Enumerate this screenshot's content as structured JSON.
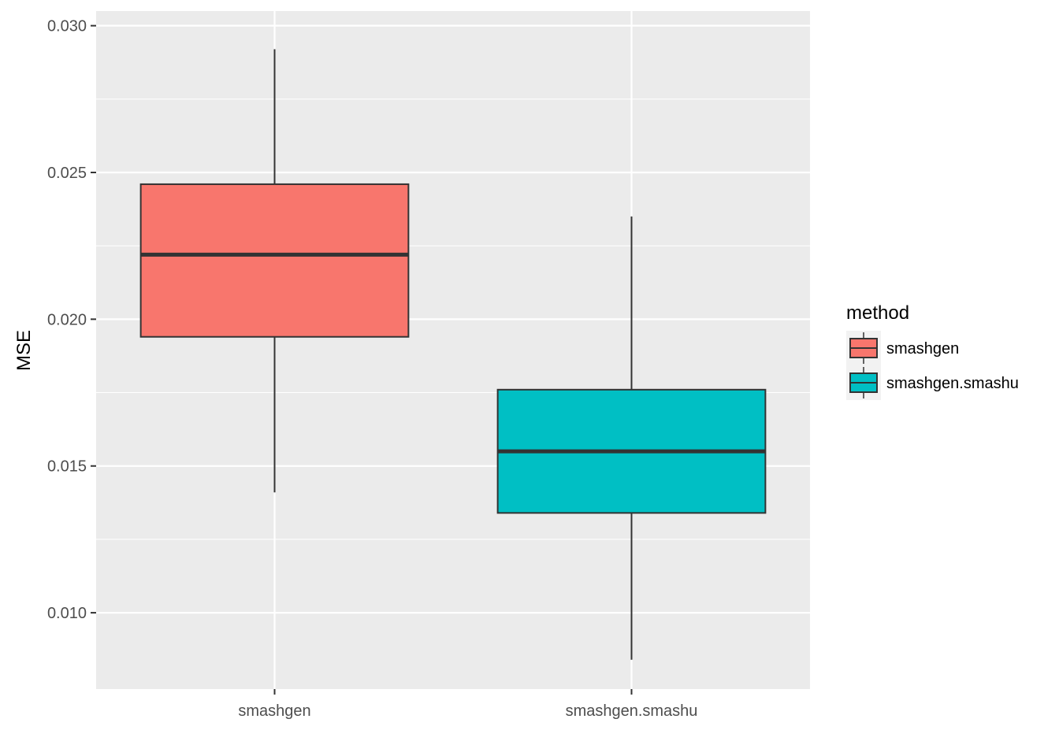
{
  "chart_data": {
    "type": "boxplot",
    "title": "",
    "xlabel": "",
    "ylabel": "MSE",
    "ylim": [
      0.0074,
      0.0305
    ],
    "y_ticks": [
      0.01,
      0.015,
      0.02,
      0.025,
      0.03
    ],
    "y_tick_labels": [
      "0.010",
      "0.015",
      "0.020",
      "0.025",
      "0.030"
    ],
    "y_minor_ticks": [
      0.0125,
      0.0175,
      0.0225,
      0.0275
    ],
    "categories": [
      "smashgen",
      "smashgen.smashu"
    ],
    "grid": true,
    "legend": {
      "title": "method",
      "placement": "right"
    },
    "series": [
      {
        "name": "smashgen",
        "color": "#F8766D",
        "min": 0.0141,
        "q1": 0.0194,
        "median": 0.0222,
        "q3": 0.0246,
        "max": 0.0292
      },
      {
        "name": "smashgen.smashu",
        "color": "#00BFC4",
        "min": 0.0084,
        "q1": 0.0134,
        "median": 0.0155,
        "q3": 0.0176,
        "max": 0.0235
      }
    ]
  }
}
